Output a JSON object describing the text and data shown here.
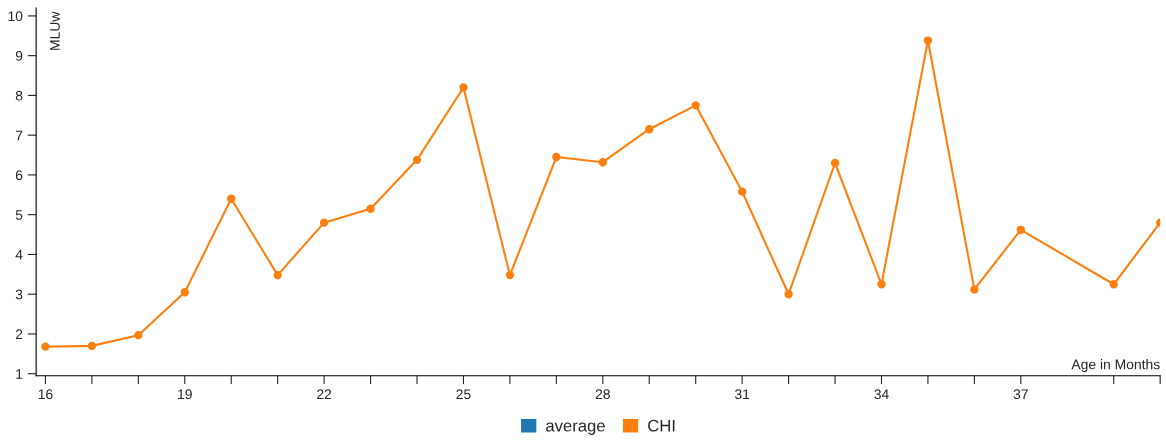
{
  "chart_data": {
    "type": "line",
    "xlabel": "Age in Months",
    "ylabel": "MLUw",
    "x": [
      16,
      17,
      18,
      19,
      20,
      21,
      22,
      23,
      24,
      25,
      26,
      27,
      28,
      29,
      30,
      31,
      32,
      33,
      34,
      35,
      36,
      37,
      39,
      40
    ],
    "series": [
      {
        "name": "average",
        "color": "#1f77b4",
        "values": [
          null,
          null,
          null,
          null,
          null,
          null,
          null,
          null,
          null,
          null,
          null,
          null,
          null,
          null,
          null,
          null,
          null,
          null,
          null,
          null,
          null,
          null,
          null,
          null
        ]
      },
      {
        "name": "CHI",
        "color": "#ff7f0e",
        "values": [
          1.68,
          1.7,
          1.97,
          3.05,
          5.4,
          3.48,
          4.8,
          5.15,
          6.38,
          8.2,
          3.48,
          6.45,
          6.32,
          7.15,
          7.75,
          5.58,
          3.0,
          6.3,
          3.25,
          9.38,
          3.12,
          4.62,
          3.25,
          4.8
        ]
      }
    ],
    "xlim": [
      15.8,
      40
    ],
    "ylim": [
      0.95,
      10.2
    ],
    "xticks": [
      16,
      {
        "value": 17,
        "label": null
      },
      {
        "value": 18,
        "label": null
      },
      19,
      {
        "value": 20,
        "label": null
      },
      {
        "value": 21,
        "label": null
      },
      22,
      {
        "value": 23,
        "label": null
      },
      {
        "value": 24,
        "label": null
      },
      25,
      {
        "value": 26,
        "label": null
      },
      {
        "value": 27,
        "label": null
      },
      28,
      {
        "value": 29,
        "label": null
      },
      {
        "value": 30,
        "label": null
      },
      31,
      {
        "value": 32,
        "label": null
      },
      {
        "value": 33,
        "label": null
      },
      34,
      {
        "value": 35,
        "label": null
      },
      {
        "value": 36,
        "label": null
      },
      37,
      {
        "value": 39,
        "label": null
      },
      {
        "value": 40,
        "label": null
      }
    ],
    "yticks": [
      1,
      2,
      3,
      4,
      5,
      6,
      7,
      8,
      9,
      10
    ],
    "marker": "circle",
    "line_style": "solid",
    "grid": false,
    "legend": "bottom"
  }
}
